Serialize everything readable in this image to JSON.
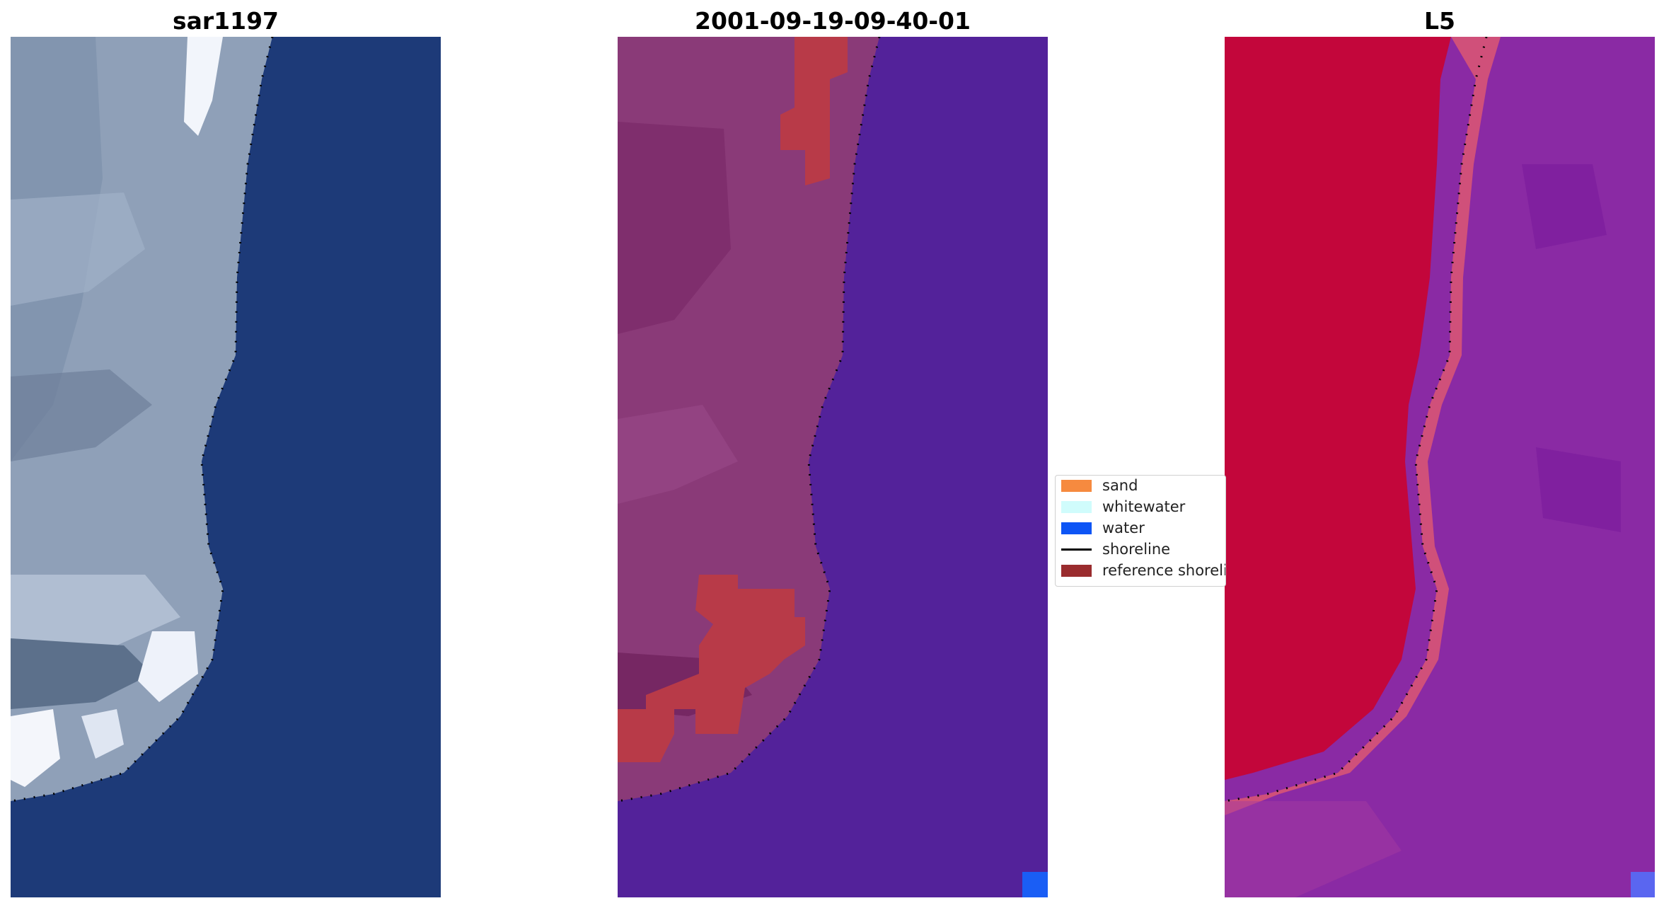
{
  "panels": {
    "left": {
      "title": "sar1197"
    },
    "middle": {
      "title": "2001-09-19-09-40-01"
    },
    "right": {
      "title": "L5"
    }
  },
  "legend": {
    "items": [
      {
        "label": "sand",
        "color": "#f68a3f",
        "kind": "patch"
      },
      {
        "label": "whitewater",
        "color": "#d0fcfc",
        "kind": "patch"
      },
      {
        "label": "water",
        "color": "#0d55f5",
        "kind": "patch"
      },
      {
        "label": "shoreline",
        "color": "#000000",
        "kind": "line"
      },
      {
        "label": "reference shoreli",
        "color": "#9a2c2e",
        "kind": "patch"
      }
    ]
  },
  "colors": {
    "left_land": "#8fa0b8",
    "left_water": "#1d3a78",
    "left_surf": "#e8eef8",
    "middle_land": "#8a3a78",
    "middle_water": "#53229a",
    "middle_sand": "#b83a48",
    "right_land": "#c3063b",
    "right_water": "#8a2aa4",
    "right_band": "#d0507a"
  }
}
